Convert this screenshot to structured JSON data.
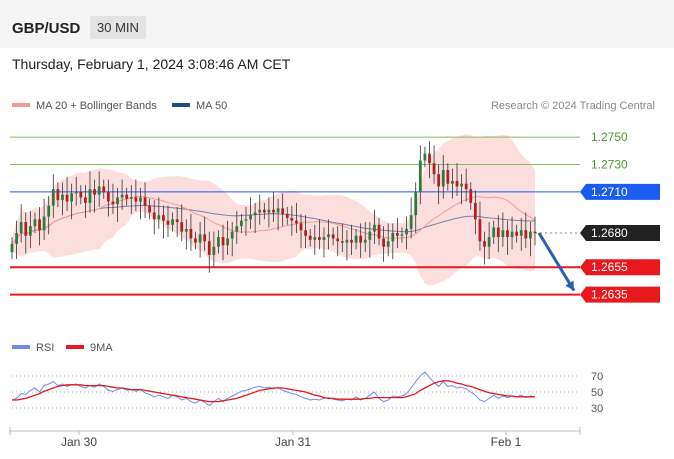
{
  "header": {
    "symbol": "GBP/USD",
    "timeframe": "30 MIN"
  },
  "datetime": "Thursday, February 1, 2024 3:08:46 AM CET",
  "legend": {
    "ma": "MA 20 + Bollinger Bands",
    "ma50": "MA 50",
    "credit": "Research © 2024 Trading Central"
  },
  "colors": {
    "resistance": "#8ab85c",
    "pivot": "#1a5cf0",
    "support": "#e8181c",
    "price": "#222222",
    "rsi": "#6a8ee8",
    "rsi_ma": "#e8181c",
    "bands": "#fcdede",
    "bull": "#2e7a3a",
    "bear": "#b31e1e",
    "ma50": "#7a7fb0",
    "arrow": "#2a5fb0"
  },
  "chart_data": [
    {
      "type": "candlestick",
      "x_ticks": [
        "Jan 30",
        "Jan 31",
        "Feb 1"
      ],
      "ylim": [
        1.2615,
        1.2764
      ],
      "levels": [
        {
          "value": 1.275,
          "label": "1.2750",
          "kind": "resistance"
        },
        {
          "value": 1.273,
          "label": "1.2730",
          "kind": "resistance"
        },
        {
          "value": 1.271,
          "label": "1.2710",
          "kind": "pivot"
        },
        {
          "value": 1.268,
          "label": "1.2680",
          "kind": "price"
        },
        {
          "value": 1.2655,
          "label": "1.2655",
          "kind": "support"
        },
        {
          "value": 1.2635,
          "label": "1.2635",
          "kind": "support"
        }
      ],
      "close": [
        1.2672,
        1.268,
        1.2688,
        1.2678,
        1.2685,
        1.269,
        1.2682,
        1.2692,
        1.27,
        1.2712,
        1.2704,
        1.2708,
        1.2703,
        1.2709,
        1.271,
        1.2706,
        1.2702,
        1.2712,
        1.2708,
        1.2714,
        1.271,
        1.2703,
        1.2701,
        1.2706,
        1.2708,
        1.2705,
        1.2706,
        1.2703,
        1.2706,
        1.27,
        1.2695,
        1.269,
        1.2693,
        1.2689,
        1.2686,
        1.269,
        1.2688,
        1.2681,
        1.2683,
        1.2676,
        1.2673,
        1.2679,
        1.2674,
        1.2664,
        1.267,
        1.2677,
        1.2671,
        1.2676,
        1.2681,
        1.2685,
        1.2689,
        1.269,
        1.2693,
        1.2695,
        1.2697,
        1.2695,
        1.2697,
        1.2695,
        1.2698,
        1.2694,
        1.2691,
        1.2689,
        1.2687,
        1.2682,
        1.2678,
        1.2675,
        1.2677,
        1.2675,
        1.2677,
        1.2679,
        1.2676,
        1.2674,
        1.2673,
        1.2675,
        1.2673,
        1.2678,
        1.2673,
        1.2675,
        1.2681,
        1.2686,
        1.2676,
        1.267,
        1.2674,
        1.268,
        1.2678,
        1.2679,
        1.2683,
        1.2693,
        1.271,
        1.2733,
        1.2738,
        1.2731,
        1.2723,
        1.2714,
        1.2726,
        1.2716,
        1.2718,
        1.2714,
        1.2716,
        1.2712,
        1.2702,
        1.269,
        1.2674,
        1.267,
        1.2677,
        1.2684,
        1.2677,
        1.2682,
        1.2677,
        1.2681,
        1.2678,
        1.2682,
        1.2676,
        1.2681,
        1.268
      ]
    },
    {
      "type": "line",
      "series": [
        {
          "name": "RSI"
        },
        {
          "name": "9MA"
        }
      ],
      "ylim": [
        15,
        85
      ],
      "y_ticks": [
        "70",
        "50",
        "30"
      ],
      "rsi": [
        40,
        42,
        48,
        47,
        52,
        55,
        50,
        58,
        60,
        63,
        58,
        60,
        57,
        59,
        60,
        57,
        55,
        58,
        56,
        60,
        57,
        52,
        51,
        53,
        55,
        52,
        53,
        51,
        53,
        49,
        47,
        44,
        46,
        44,
        42,
        46,
        44,
        40,
        42,
        38,
        36,
        40,
        37,
        33,
        38,
        42,
        38,
        42,
        45,
        48,
        51,
        52,
        54,
        56,
        57,
        55,
        56,
        54,
        56,
        52,
        50,
        48,
        47,
        44,
        42,
        40,
        41,
        40,
        42,
        43,
        41,
        40,
        39,
        41,
        40,
        44,
        40,
        42,
        46,
        50,
        42,
        38,
        40,
        45,
        44,
        45,
        48,
        55,
        63,
        70,
        75,
        68,
        62,
        57,
        63,
        57,
        58,
        55,
        56,
        54,
        50,
        46,
        40,
        38,
        42,
        46,
        42,
        45,
        43,
        45,
        44,
        46,
        43,
        45,
        44
      ],
      "ma9": [
        40,
        40,
        41,
        42,
        44,
        46,
        48,
        51,
        53,
        55,
        57,
        58,
        59,
        59,
        59,
        59,
        58,
        58,
        58,
        58,
        58,
        57,
        56,
        55,
        55,
        54,
        53,
        53,
        53,
        52,
        51,
        50,
        49,
        48,
        47,
        46,
        45,
        44,
        43,
        42,
        41,
        40,
        39,
        38,
        38,
        38,
        39,
        40,
        41,
        42,
        44,
        46,
        48,
        50,
        52,
        53,
        54,
        55,
        55,
        55,
        54,
        53,
        52,
        51,
        50,
        48,
        46,
        45,
        43,
        42,
        42,
        41,
        41,
        41,
        41,
        41,
        41,
        42,
        42,
        43,
        43,
        43,
        43,
        43,
        43,
        43,
        44,
        46,
        48,
        52,
        55,
        58,
        61,
        63,
        64,
        64,
        63,
        61,
        60,
        58,
        57,
        55,
        53,
        51,
        49,
        48,
        47,
        46,
        45,
        45,
        44,
        44,
        44,
        44,
        44
      ]
    }
  ]
}
